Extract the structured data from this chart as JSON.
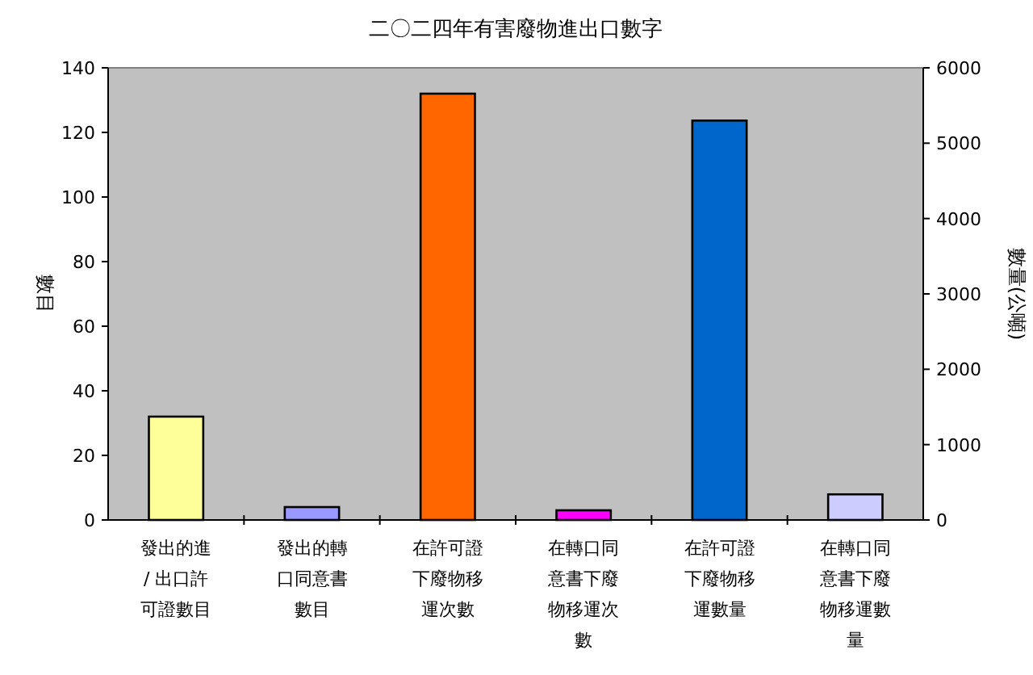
{
  "chart_data": {
    "type": "bar",
    "title": "二〇二四年有害廢物進出口數字",
    "ylabel": "數目",
    "y2label": "數量(公噸)",
    "categories": [
      "發出的進 / 出口許可證數目",
      "發出的轉口同意書數目",
      "在許可證下廢物移運次數",
      "在轉口同意書下廢物移運次數",
      "在許可證下廢物移運數量",
      "在轉口同意書下廢物移運數量"
    ],
    "series": [
      {
        "values": [
          32,
          4,
          132,
          3,
          null,
          null
        ],
        "colors": [
          "#ffff99",
          "#9999ff",
          "#ff6600",
          "#ff00ff",
          null,
          null
        ]
      },
      {
        "axis": "y2",
        "values": [
          null,
          null,
          null,
          null,
          5300,
          340
        ],
        "colors": [
          null,
          null,
          null,
          null,
          "#0066cc",
          "#ccccff"
        ]
      }
    ],
    "ylim": [
      0,
      140
    ],
    "yticks": [
      0,
      20,
      40,
      60,
      80,
      100,
      120,
      140
    ],
    "y2lim": [
      0,
      6000
    ],
    "y2ticks": [
      0,
      1000,
      2000,
      3000,
      4000,
      5000,
      6000
    ]
  }
}
